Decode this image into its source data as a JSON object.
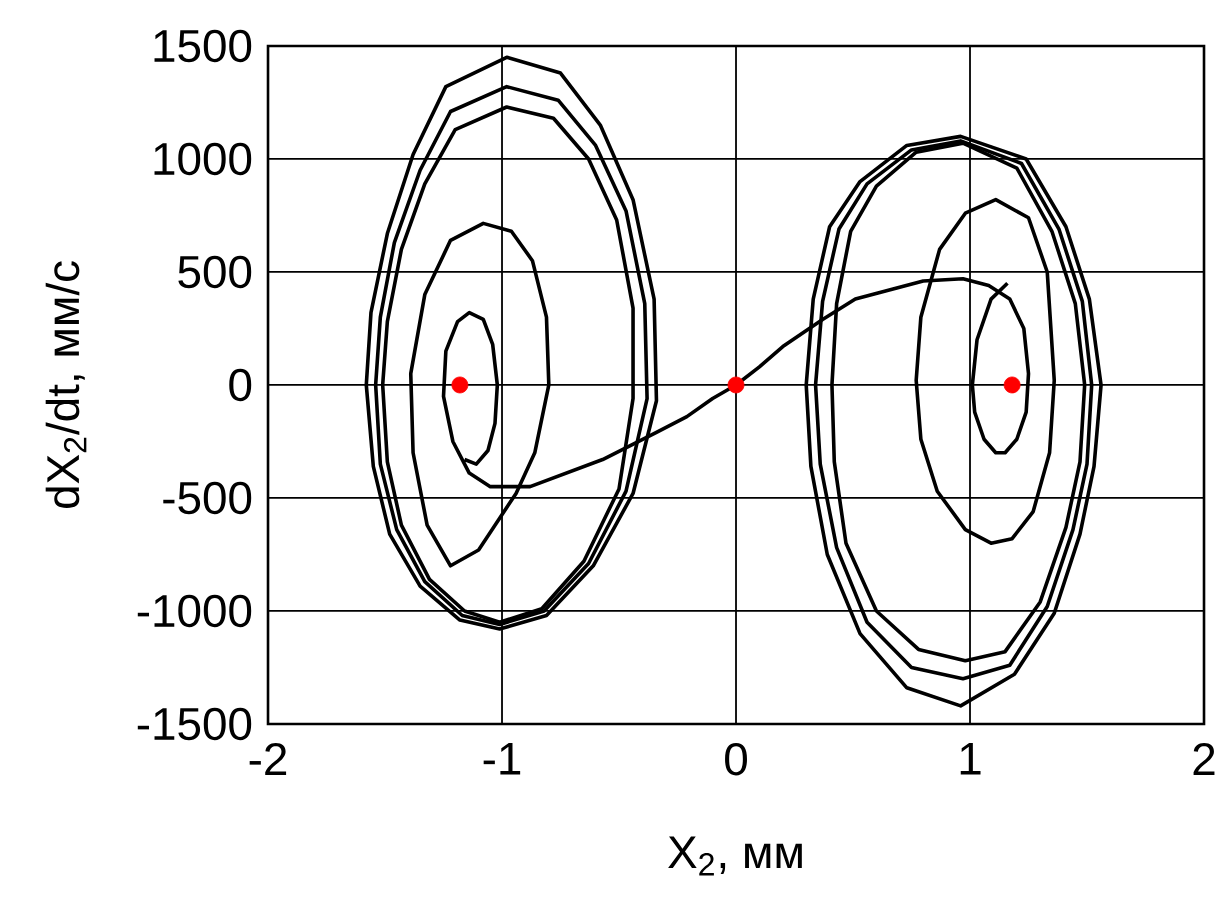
{
  "chart_data": {
    "type": "line",
    "xlabel": "X$_{2}$, мм",
    "ylabel": "dX$_{2}$/dt, мм/с",
    "xlim": [
      -2,
      2
    ],
    "ylim": [
      -1500,
      1500
    ],
    "xticks": [
      -2,
      -1,
      0,
      1,
      2
    ],
    "yticks": [
      -1500,
      -1000,
      -500,
      0,
      500,
      1000,
      1500
    ],
    "grid": true,
    "series": [
      {
        "color": "#000000",
        "x": [
          -0.98,
          -1.24,
          -1.38,
          -1.49,
          -1.56,
          -1.58,
          -1.55,
          -1.48,
          -1.35,
          -1.18,
          -1.01,
          -0.81,
          -0.61,
          -0.44,
          -0.34,
          -0.35,
          -0.44,
          -0.58,
          -0.75,
          -0.98,
          -1.24
        ],
        "values": [
          1450,
          1320,
          1020,
          670,
          320,
          0,
          -360,
          -660,
          -890,
          -1040,
          -1080,
          -1020,
          -800,
          -480,
          -70,
          380,
          820,
          1150,
          1380,
          1450,
          1320
        ]
      },
      {
        "color": "#000000",
        "x": [
          -0.98,
          -1.22,
          -1.35,
          -1.46,
          -1.52,
          -1.54,
          -1.52,
          -1.45,
          -1.33,
          -1.17,
          -1.01,
          -0.82,
          -0.63,
          -0.47,
          -0.38,
          -0.39,
          -0.47,
          -0.6,
          -0.76,
          -0.98,
          -1.22
        ],
        "values": [
          1320,
          1210,
          950,
          630,
          300,
          0,
          -350,
          -640,
          -870,
          -1020,
          -1060,
          -1000,
          -790,
          -470,
          -60,
          360,
          770,
          1060,
          1260,
          1320,
          1210
        ]
      },
      {
        "color": "#000000",
        "x": [
          -0.98,
          -1.2,
          -1.33,
          -1.43,
          -1.49,
          -1.51,
          -1.49,
          -1.43,
          -1.31,
          -1.16,
          -1.01,
          -0.83,
          -0.65,
          -0.5,
          -0.44,
          -0.44,
          -0.51,
          -0.63,
          -0.78,
          -0.98,
          -1.2
        ],
        "values": [
          1230,
          1130,
          890,
          600,
          280,
          0,
          -340,
          -620,
          -860,
          -1000,
          -1050,
          -990,
          -780,
          -460,
          -60,
          340,
          730,
          1000,
          1180,
          1230,
          1130
        ]
      },
      {
        "color": "#000000",
        "x": [
          -1.08,
          -1.22,
          -1.33,
          -1.39,
          -1.38,
          -1.32,
          -1.22,
          -1.1,
          -0.94,
          -0.86,
          -0.8,
          -0.81,
          -0.87,
          -0.96,
          -1.08,
          -1.22
        ],
        "values": [
          715,
          640,
          400,
          50,
          -300,
          -620,
          -800,
          -730,
          -480,
          -300,
          0,
          300,
          550,
          680,
          715,
          640
        ]
      },
      {
        "color": "#000000",
        "x": [
          0,
          -0.1,
          -0.21,
          -0.34,
          -0.57,
          -0.88,
          -1.05,
          -1.14,
          -1.21,
          -1.25,
          -1.24,
          -1.19,
          -1.14,
          -1.08,
          -1.04,
          -1.02,
          -1.03,
          -1.06,
          -1.11,
          -1.16
        ],
        "values": [
          0,
          -60,
          -140,
          -210,
          -330,
          -450,
          -450,
          -390,
          -250,
          -50,
          150,
          280,
          320,
          290,
          180,
          0,
          -170,
          -290,
          -350,
          -330
        ]
      },
      {
        "color": "#000000",
        "x": [
          0.96,
          1.24,
          1.41,
          1.51,
          1.56,
          1.53,
          1.47,
          1.36,
          1.19,
          0.96,
          0.73,
          0.53,
          0.39,
          0.32,
          0.3,
          0.33,
          0.4,
          0.53,
          0.73,
          0.96,
          1.24
        ],
        "values": [
          1100,
          1000,
          700,
          380,
          0,
          -360,
          -660,
          -1010,
          -1280,
          -1420,
          -1340,
          -1100,
          -750,
          -360,
          0,
          380,
          700,
          900,
          1060,
          1100,
          1000
        ]
      },
      {
        "color": "#000000",
        "x": [
          0.96,
          1.22,
          1.38,
          1.48,
          1.52,
          1.5,
          1.44,
          1.33,
          1.17,
          0.97,
          0.75,
          0.56,
          0.43,
          0.36,
          0.34,
          0.37,
          0.44,
          0.56,
          0.75,
          0.96,
          1.22
        ],
        "values": [
          1080,
          980,
          690,
          370,
          0,
          -350,
          -640,
          -980,
          -1240,
          -1300,
          -1250,
          -1050,
          -720,
          -350,
          0,
          370,
          690,
          890,
          1040,
          1080,
          980
        ]
      },
      {
        "color": "#000000",
        "x": [
          0.97,
          1.2,
          1.35,
          1.45,
          1.49,
          1.47,
          1.41,
          1.3,
          1.15,
          0.98,
          0.78,
          0.6,
          0.47,
          0.42,
          0.41,
          0.43,
          0.49,
          0.6,
          0.77,
          0.97,
          1.2
        ],
        "values": [
          1070,
          960,
          680,
          360,
          0,
          -340,
          -630,
          -960,
          -1180,
          -1220,
          -1170,
          -1000,
          -700,
          -340,
          0,
          360,
          680,
          880,
          1030,
          1070,
          960
        ]
      },
      {
        "color": "#000000",
        "x": [
          1.11,
          1.25,
          1.33,
          1.36,
          1.34,
          1.27,
          1.18,
          1.09,
          0.98,
          0.86,
          0.79,
          0.77,
          0.79,
          0.87,
          0.98,
          1.11,
          1.25
        ],
        "values": [
          820,
          740,
          500,
          20,
          -300,
          -560,
          -680,
          -700,
          -640,
          -470,
          -240,
          20,
          300,
          600,
          760,
          820,
          740
        ]
      },
      {
        "color": "#000000",
        "x": [
          0,
          0.1,
          0.2,
          0.37,
          0.51,
          0.8,
          0.97,
          1.08,
          1.17,
          1.23,
          1.25,
          1.24,
          1.2,
          1.15,
          1.11,
          1.06,
          1.02,
          1.01,
          1.03,
          1.09,
          1.16
        ],
        "values": [
          0,
          80,
          170,
          290,
          380,
          460,
          470,
          440,
          380,
          250,
          50,
          -120,
          -240,
          -300,
          -300,
          -240,
          -120,
          0,
          200,
          380,
          450
        ]
      },
      {
        "type": "scatter",
        "color": "#ff0000",
        "marker": "circle",
        "x": [
          -1.18,
          0,
          1.18
        ],
        "values": [
          0,
          0,
          0
        ]
      }
    ]
  }
}
